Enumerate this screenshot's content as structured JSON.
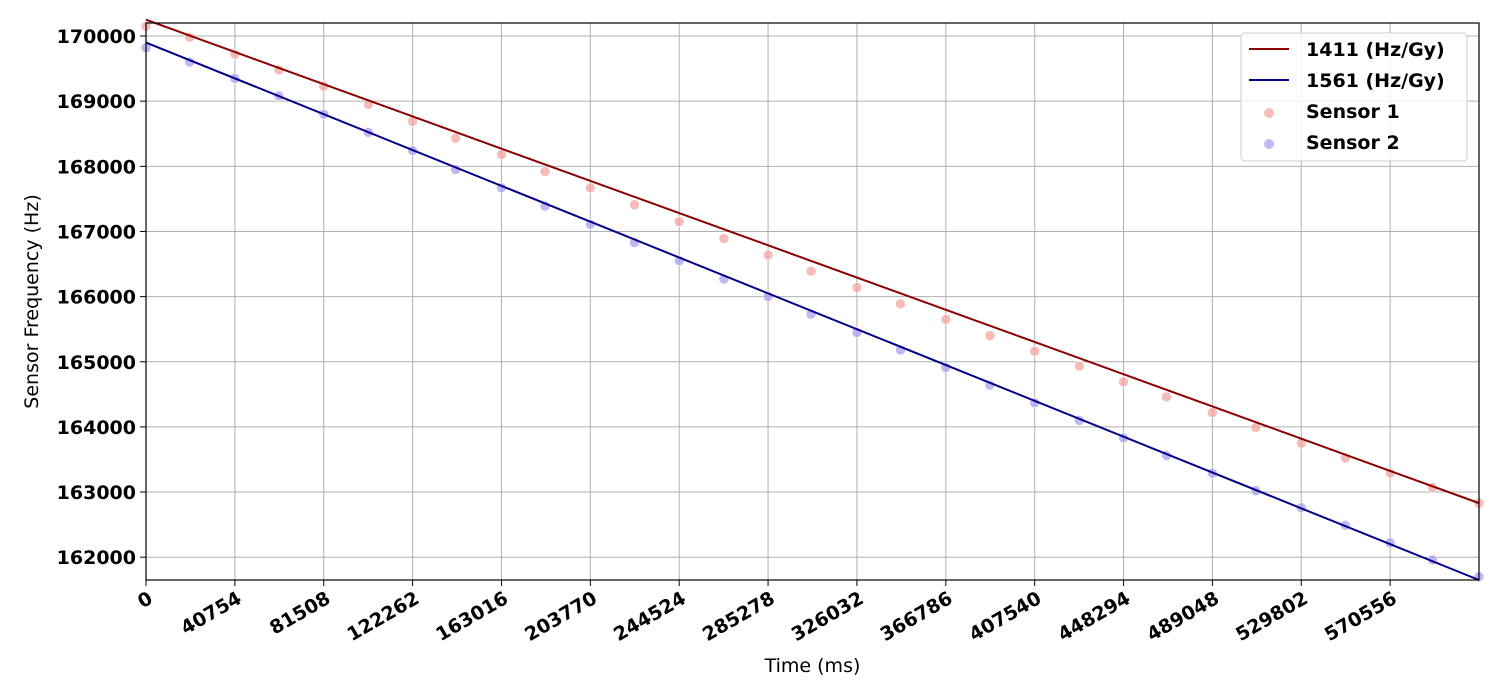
{
  "chart_data": {
    "type": "scatter",
    "xlabel": "Time (ms)",
    "ylabel": "Sensor Frequency (Hz)",
    "xlim": [
      0,
      611310
    ],
    "ylim": [
      161650,
      170200
    ],
    "grid": true,
    "legend_position": "top-right",
    "x_ticks": [
      0,
      40754,
      81508,
      122262,
      163016,
      203770,
      244524,
      285278,
      326032,
      366786,
      407540,
      448294,
      489048,
      529802,
      570556
    ],
    "y_ticks": [
      162000,
      163000,
      164000,
      165000,
      166000,
      167000,
      168000,
      169000,
      170000
    ],
    "fit_lines": [
      {
        "name": "1411 (Hz/Gy)",
        "color": "#8b0000",
        "x": [
          0,
          611310
        ],
        "y": [
          170250,
          162830
        ]
      },
      {
        "name": "1561 (Hz/Gy)",
        "color": "#00008b",
        "x": [
          0,
          611310
        ],
        "y": [
          169900,
          161650
        ]
      }
    ],
    "series": [
      {
        "name": "Sensor 1",
        "color": "#f4a09a",
        "x": [
          0,
          20000,
          40754,
          61000,
          81508,
          102000,
          122262,
          142000,
          163016,
          183000,
          203770,
          224000,
          244524,
          265000,
          285278,
          305000,
          326032,
          346000,
          366786,
          387000,
          407540,
          428000,
          448294,
          468000,
          489048,
          509000,
          529802,
          550000,
          570556,
          590000,
          611310
        ],
        "y": [
          170150,
          169980,
          169720,
          169480,
          169230,
          168950,
          168690,
          168430,
          168180,
          167920,
          167670,
          167410,
          167150,
          166890,
          166640,
          166390,
          166140,
          165890,
          165650,
          165400,
          165160,
          164930,
          164690,
          164460,
          164220,
          163990,
          163750,
          163520,
          163290,
          163070,
          162830
        ]
      },
      {
        "name": "Sensor 2",
        "color": "#a898f0",
        "x": [
          0,
          20000,
          40754,
          61000,
          81508,
          102000,
          122262,
          142000,
          163016,
          183000,
          203770,
          224000,
          244524,
          265000,
          285278,
          305000,
          326032,
          346000,
          366786,
          387000,
          407540,
          428000,
          448294,
          468000,
          489048,
          509000,
          529802,
          550000,
          570556,
          590000,
          611310
        ],
        "y": [
          169820,
          169600,
          169350,
          169080,
          168800,
          168520,
          168240,
          167950,
          167670,
          167390,
          167110,
          166830,
          166550,
          166270,
          166000,
          165730,
          165450,
          165180,
          164910,
          164640,
          164370,
          164100,
          163830,
          163560,
          163290,
          163020,
          162760,
          162490,
          162220,
          161960,
          161700
        ]
      }
    ]
  }
}
